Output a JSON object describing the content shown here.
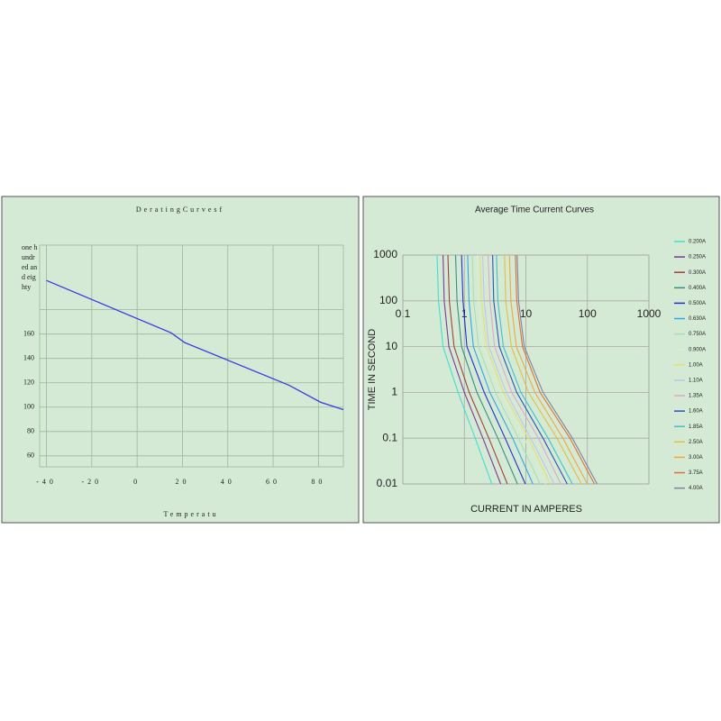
{
  "chart_data": [
    {
      "type": "line",
      "title": "DeratingCurvesf",
      "x_label": "Temperatu",
      "x": [
        -40,
        15,
        21,
        67,
        81,
        91
      ],
      "values": [
        204,
        161,
        153,
        118,
        104,
        98
      ],
      "color": "#3a3ae0",
      "xlim": [
        -43,
        91
      ],
      "xticks": [
        -40,
        -20,
        0,
        20,
        40,
        60,
        80
      ],
      "ylim": [
        51,
        233
      ],
      "yticks": [
        60,
        80,
        100,
        120,
        140,
        160,
        {
          "value": 180,
          "label": "one hundred and eighty"
        }
      ],
      "grid": true
    },
    {
      "type": "line",
      "title": "Average Time Current Curves",
      "x_label": "CURRENT IN AMPERES",
      "y_label": "TIME IN SECOND",
      "xscale": "log",
      "yscale": "log",
      "xlim": [
        0.1,
        1000
      ],
      "ylim": [
        0.01,
        1000
      ],
      "xticks": [
        0.1,
        1,
        10,
        100,
        1000
      ],
      "yticks": [
        0.01,
        0.1,
        1,
        10,
        100,
        1000
      ],
      "grid": true,
      "legend": "right",
      "series": [
        {
          "name": "0.200A",
          "color": "#40e0d0",
          "x": [
            0.36,
            0.38,
            0.45,
            0.79,
            1.5,
            2.8
          ],
          "values": [
            1000,
            100,
            10,
            1,
            0.1,
            0.01
          ]
        },
        {
          "name": "0.250A",
          "color": "#7a3a9a",
          "x": [
            0.45,
            0.47,
            0.56,
            1.0,
            2.0,
            3.9
          ],
          "values": [
            1000,
            100,
            10,
            1,
            0.1,
            0.01
          ]
        },
        {
          "name": "0.300A",
          "color": "#a04040",
          "x": [
            0.54,
            0.57,
            0.68,
            1.2,
            2.5,
            5.0
          ],
          "values": [
            1000,
            100,
            10,
            1,
            0.1,
            0.01
          ]
        },
        {
          "name": "0.400A",
          "color": "#3a8f80",
          "x": [
            0.72,
            0.76,
            0.9,
            1.6,
            3.5,
            7.3
          ],
          "values": [
            1000,
            100,
            10,
            1,
            0.1,
            0.01
          ]
        },
        {
          "name": "0.500A",
          "color": "#2030d0",
          "x": [
            0.9,
            0.95,
            1.1,
            2.1,
            4.6,
            9.8
          ],
          "values": [
            1000,
            100,
            10,
            1,
            0.1,
            0.01
          ]
        },
        {
          "name": "0.630A",
          "color": "#30a8e8",
          "x": [
            1.13,
            1.19,
            1.4,
            2.6,
            6.1,
            13
          ],
          "values": [
            1000,
            100,
            10,
            1,
            0.1,
            0.01
          ]
        },
        {
          "name": "0.750A",
          "color": "#a8e0b0",
          "x": [
            1.35,
            1.42,
            1.7,
            3.2,
            7.6,
            17
          ],
          "values": [
            1000,
            100,
            10,
            1,
            0.1,
            0.01
          ]
        },
        {
          "name": "0.900A",
          "color": "#d8f0c8",
          "x": [
            1.62,
            1.7,
            2.0,
            3.9,
            9.4,
            21
          ],
          "values": [
            1000,
            100,
            10,
            1,
            0.1,
            0.01
          ]
        },
        {
          "name": "1.00A",
          "color": "#e8e070",
          "x": [
            1.8,
            1.9,
            2.3,
            4.3,
            11,
            25
          ],
          "values": [
            1000,
            100,
            10,
            1,
            0.1,
            0.01
          ]
        },
        {
          "name": "1.10A",
          "color": "#c0c4f0",
          "x": [
            1.98,
            2.1,
            2.5,
            4.8,
            12,
            29
          ],
          "values": [
            1000,
            100,
            10,
            1,
            0.1,
            0.01
          ]
        },
        {
          "name": "1.35A",
          "color": "#e0a8c8",
          "x": [
            2.43,
            2.6,
            3.1,
            5.9,
            16,
            37
          ],
          "values": [
            1000,
            100,
            10,
            1,
            0.1,
            0.01
          ]
        },
        {
          "name": "1.60A",
          "color": "#3050c0",
          "x": [
            2.88,
            3.0,
            3.7,
            7.1,
            19,
            47
          ],
          "values": [
            1000,
            100,
            10,
            1,
            0.1,
            0.01
          ]
        },
        {
          "name": "1.85A",
          "color": "#40c0c8",
          "x": [
            3.33,
            3.5,
            4.3,
            8.3,
            23,
            57
          ],
          "values": [
            1000,
            100,
            10,
            1,
            0.1,
            0.01
          ]
        },
        {
          "name": "2.50A",
          "color": "#e0c040",
          "x": [
            4.5,
            4.7,
            5.8,
            11,
            32,
            80
          ],
          "values": [
            1000,
            100,
            10,
            1,
            0.1,
            0.01
          ]
        },
        {
          "name": "3.00A",
          "color": "#f0a840",
          "x": [
            5.4,
            5.7,
            7.0,
            14,
            40,
            100
          ],
          "values": [
            1000,
            100,
            10,
            1,
            0.1,
            0.01
          ]
        },
        {
          "name": "3.75A",
          "color": "#e07030",
          "x": [
            6.75,
            7.1,
            8.8,
            17,
            52,
            130
          ],
          "values": [
            1000,
            100,
            10,
            1,
            0.1,
            0.01
          ]
        },
        {
          "name": "4.00A",
          "color": "#8080a0",
          "x": [
            7.2,
            7.6,
            9.4,
            19,
            57,
            144
          ],
          "values": [
            1000,
            100,
            10,
            1,
            0.1,
            0.01
          ]
        }
      ]
    }
  ]
}
